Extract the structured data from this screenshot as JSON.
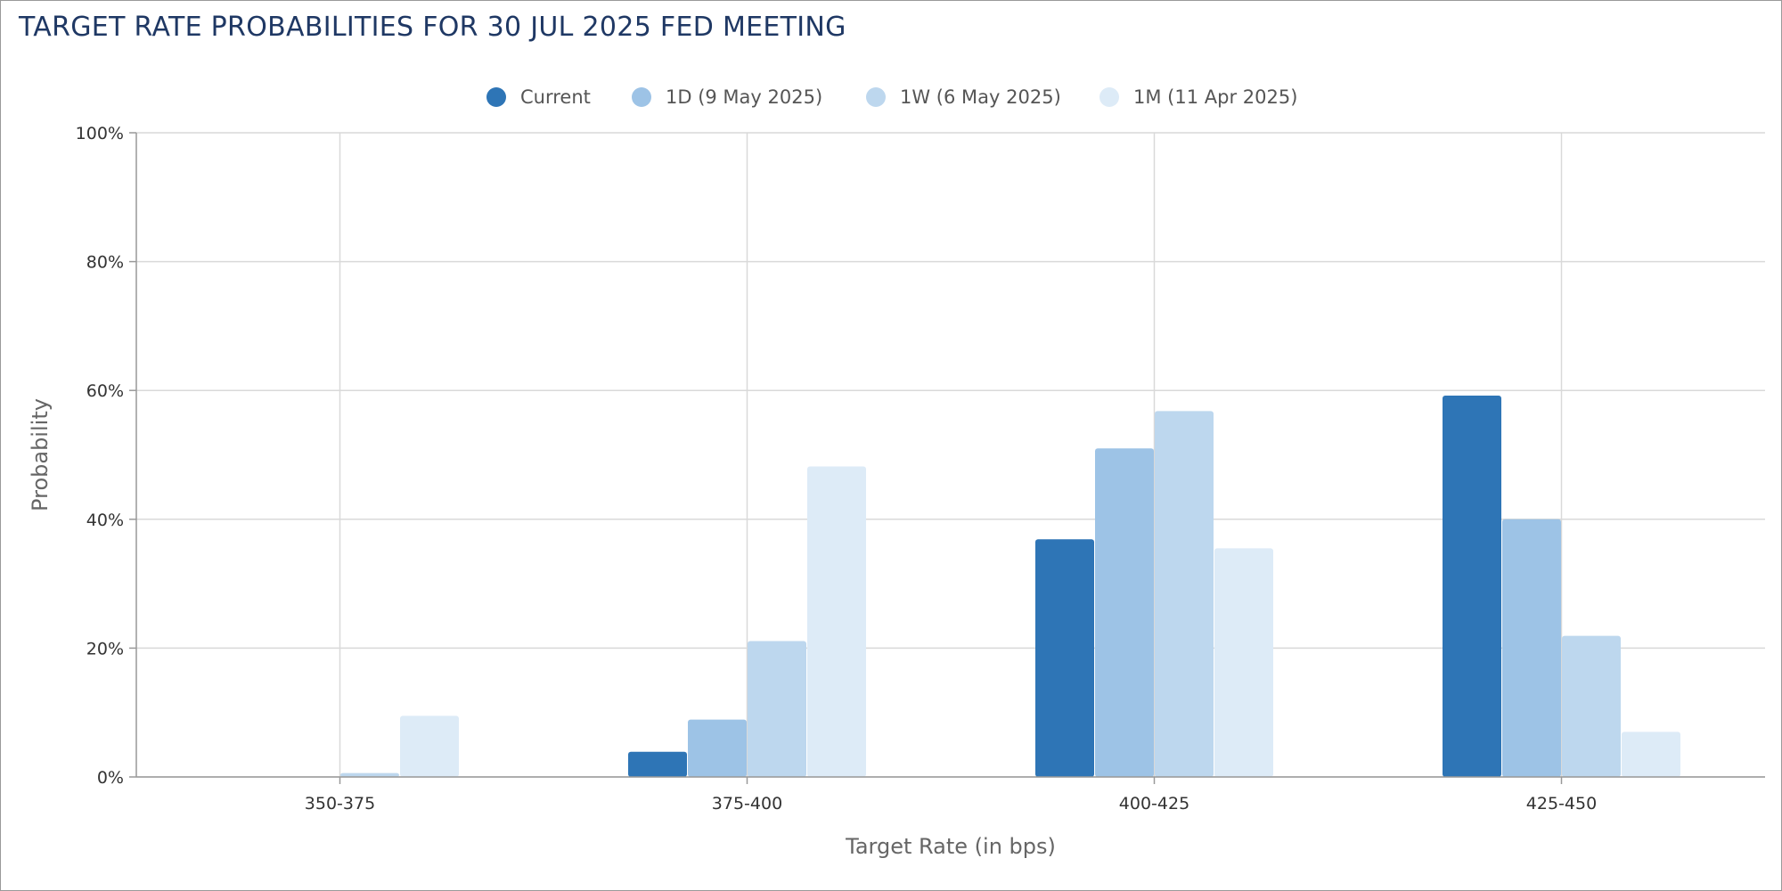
{
  "colors": {
    "series": [
      "#2e75b6",
      "#9dc3e6",
      "#bdd7ee",
      "#ddebf7"
    ],
    "title": "#1f3864",
    "grid": "#d9d9d9",
    "axis": "#999999"
  },
  "chart_data": {
    "type": "bar",
    "title": "TARGET RATE PROBABILITIES FOR 30 JUL 2025 FED MEETING",
    "xlabel": "Target Rate (in bps)",
    "ylabel": "Probability",
    "categories": [
      "350-375",
      "375-400",
      "400-425",
      "425-450"
    ],
    "series": [
      {
        "name": "Current",
        "values": [
          0,
          3.9,
          36.9,
          59.2
        ]
      },
      {
        "name": "1D (9 May 2025)",
        "values": [
          0,
          8.9,
          51.0,
          40.0
        ]
      },
      {
        "name": "1W (6 May 2025)",
        "values": [
          0.6,
          21.1,
          56.8,
          21.9
        ]
      },
      {
        "name": "1M (11 Apr 2025)",
        "values": [
          9.5,
          48.2,
          35.5,
          7.0
        ]
      }
    ],
    "ylim": [
      0,
      100
    ],
    "yticks": [
      0,
      20,
      40,
      60,
      80,
      100
    ],
    "ytick_labels": [
      "0%",
      "20%",
      "40%",
      "60%",
      "80%",
      "100%"
    ],
    "grid": true,
    "legend_position": "top-center"
  }
}
